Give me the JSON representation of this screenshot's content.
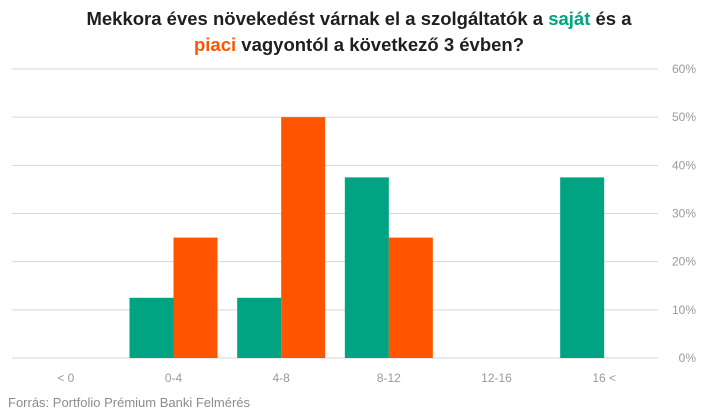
{
  "title": {
    "part1": "Mekkora éves növekedést várnak el a szolgáltatók a ",
    "highlight1": "saját",
    "part2": " és a",
    "highlight2": "piaci",
    "part3": " vagyontól a következő 3 évben?"
  },
  "source": "Forrás: Portfolio Prémium Banki Felmérés",
  "colors": {
    "saját": "#00a482",
    "piaci": "#ff5500",
    "grid": "#d6d6d6",
    "tick": "#9a9a9a"
  },
  "chart_data": {
    "type": "bar",
    "categories": [
      "< 0",
      "0-4",
      "4-8",
      "8-12",
      "12-16",
      "16 <"
    ],
    "series": [
      {
        "name": "saját",
        "values": [
          0,
          12.5,
          12.5,
          37.5,
          0,
          37.5
        ]
      },
      {
        "name": "piaci",
        "values": [
          0,
          25,
          50,
          25,
          0,
          0
        ]
      }
    ],
    "ylim": [
      0,
      60
    ],
    "yticks": [
      "0%",
      "10%",
      "20%",
      "30%",
      "40%",
      "50%",
      "60%"
    ],
    "yaxis_position": "right",
    "grid": true,
    "legend": "in title"
  }
}
